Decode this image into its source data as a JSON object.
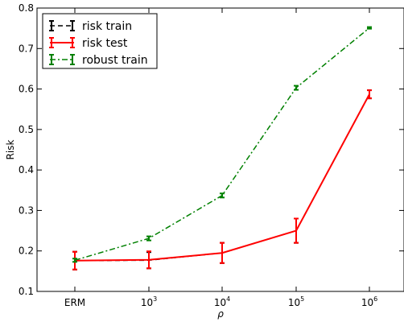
{
  "chart_data": {
    "type": "line",
    "xlabel": "ρ",
    "ylabel": "Risk",
    "ylim": [
      0.1,
      0.8
    ],
    "yticks": [
      "0.1",
      "0.2",
      "0.3",
      "0.4",
      "0.5",
      "0.6",
      "0.7",
      "0.8"
    ],
    "xticks": [
      {
        "base": "ERM",
        "exp": ""
      },
      {
        "base": "10",
        "exp": "3"
      },
      {
        "base": "10",
        "exp": "4"
      },
      {
        "base": "10",
        "exp": "5"
      },
      {
        "base": "10",
        "exp": "6"
      }
    ],
    "x": [
      "ERM",
      "10^3",
      "10^4",
      "10^5",
      "10^6"
    ],
    "grid": false,
    "legend_position": "top-left",
    "series": [
      {
        "name": "risk train",
        "color": "#000000",
        "dash": "dashed",
        "values": [
          0.176,
          0.177,
          0.195,
          0.25,
          0.587
        ],
        "errors": [
          0.022,
          0.02,
          0.025,
          0.03,
          0.01
        ]
      },
      {
        "name": "risk test",
        "color": "#ff0000",
        "dash": "solid",
        "values": [
          0.176,
          0.178,
          0.195,
          0.25,
          0.587
        ],
        "errors": [
          0.022,
          0.021,
          0.025,
          0.03,
          0.01
        ]
      },
      {
        "name": "robust train",
        "color": "#008000",
        "dash": "dash-dot",
        "values": [
          0.177,
          0.231,
          0.337,
          0.603,
          0.751
        ],
        "errors": [
          0.004,
          0.005,
          0.005,
          0.005,
          0.002
        ]
      }
    ]
  }
}
